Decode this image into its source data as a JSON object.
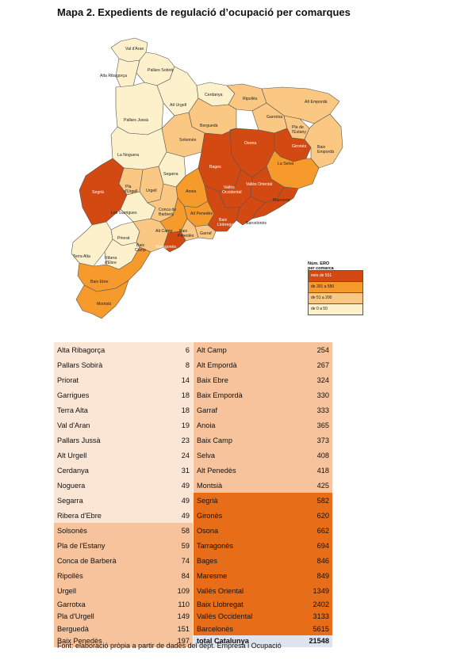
{
  "title": "Mapa 2.  Expedients de regulació d’ocupació per comarques",
  "colors": {
    "cat1": "#fdf1cc",
    "cat2": "#fbc883",
    "cat3": "#f69a2c",
    "cat4": "#d24a12",
    "table_cat1": "#fbe6d6",
    "table_cat2": "#f7c39c",
    "table_cat3": "#e86d18",
    "total": "#dde4ef"
  },
  "legend": {
    "title_line1": "Núm. ERO",
    "title_line2": "per comarca",
    "items": [
      "més de 551",
      "de 201 a 550",
      "de 51 a 200",
      "de 0 a 50"
    ]
  },
  "map_labels": {
    "val_daran": "Val d'Aran",
    "pallars_sobira": "Pallars Sobirà",
    "alta_ribagorca": "Alta Ribagorça",
    "alt_urgell": "Alt Urgell",
    "cerdanya": "Cerdanya",
    "ripolles": "Ripollès",
    "alt_emporda": "Alt Empordà",
    "pallars_jussa": "Pallars Jussà",
    "bergueda": "Berguedà",
    "garrotxa": "Garrotxa",
    "pla_estany_1": "Pla de",
    "pla_estany_2": "l'Estany",
    "solsones": "Solsonès",
    "osona": "Osona",
    "girones": "Gironès",
    "baix_emporda_1": "Baix",
    "baix_emporda_2": "Empordà",
    "noguera": "La Noguera",
    "selva": "La Selva",
    "bages": "Bages",
    "segarra": "Segarra",
    "pla_urgell_1": "Pla",
    "pla_urgell_2": "d'Urgell",
    "urgell": "Urgell",
    "anoia": "Anoia",
    "valles_occ_1": "Vallès",
    "valles_occ_2": "Occidental",
    "valles_or": "Vallès Oriental",
    "maresme": "Maresme",
    "segria": "Segrià",
    "garrigues": "Les Garrigues",
    "conca_1": "Conca de",
    "conca_2": "Barberà",
    "alt_penedes": "Alt Penedès",
    "baix_llob_1": "Baix",
    "baix_llob_2": "Llobregat",
    "barcelones": "Barcelonès",
    "alt_camp": "Alt Camp",
    "baix_penedes_1": "Baix",
    "baix_penedes_2": "Penedès",
    "garraf": "Garraf",
    "priorat": "Priorat",
    "baix_camp_1": "Baix",
    "baix_camp_2": "Camp",
    "tarragones": "Tarragonès",
    "terra_alta": "Terra Alta",
    "ribera_1": "Ribera",
    "ribera_2": "d'Ebre",
    "baix_ebre": "Baix Ebre",
    "montsia": "Montsià"
  },
  "table": {
    "rows": [
      {
        "l": "Alta Ribagorça",
        "lv": "6",
        "r": "Alt Camp",
        "rv": "254"
      },
      {
        "l": "Pallars Sobirà",
        "lv": "8",
        "r": "Alt Empordà",
        "rv": "267"
      },
      {
        "l": "Priorat",
        "lv": "14",
        "r": "Baix Ebre",
        "rv": "324"
      },
      {
        "l": "Garrigues",
        "lv": "18",
        "r": "Baix Empordà",
        "rv": "330"
      },
      {
        "l": "Terra Alta",
        "lv": "18",
        "r": "Garraf",
        "rv": "333"
      },
      {
        "l": "Val d'Aran",
        "lv": "19",
        "r": "Anoia",
        "rv": "365"
      },
      {
        "l": "Pallars Jussà",
        "lv": "23",
        "r": "Baix Camp",
        "rv": "373"
      },
      {
        "l": "Alt Urgell",
        "lv": "24",
        "r": "Selva",
        "rv": "408"
      },
      {
        "l": "Cerdanya",
        "lv": "31",
        "r": "Alt Penedès",
        "rv": "418"
      },
      {
        "l": "Noguera",
        "lv": "49",
        "r": "Montsià",
        "rv": "425"
      },
      {
        "l": "Segarra",
        "lv": "49",
        "r": "Segrià",
        "rv": "582"
      },
      {
        "l": "Ribera d'Ebre",
        "lv": "49",
        "r": "Gironès",
        "rv": "620"
      },
      {
        "l": "Solsonès",
        "lv": "58",
        "r": "Osona",
        "rv": "662"
      },
      {
        "l": "Pla de l'Estany",
        "lv": "59",
        "r": "Tarragonès",
        "rv": "694"
      },
      {
        "l": "Conca de Barberà",
        "lv": "74",
        "r": "Bages",
        "rv": "846"
      },
      {
        "l": "Ripollès",
        "lv": "84",
        "r": "Maresme",
        "rv": "849"
      },
      {
        "l": "Urgell",
        "lv": "109",
        "r": "Vallès Oriental",
        "rv": "1349"
      },
      {
        "l": "Garrotxa",
        "lv": "110",
        "r": "Baix Llobregat",
        "rv": "2402"
      },
      {
        "l": "Pla d'Urgell",
        "lv": "149",
        "r": "Vallès Occidental",
        "rv": "3133"
      },
      {
        "l": "Berguedà",
        "lv": "151",
        "r": "Barcelonès",
        "rv": "5615"
      },
      {
        "l": "Baix Penedès",
        "lv": "197",
        "r": "total Catalunya",
        "rv": "21548"
      }
    ]
  },
  "source": "Font: elaboració pròpia a partir de dades del dept. Empresa i Ocupació"
}
